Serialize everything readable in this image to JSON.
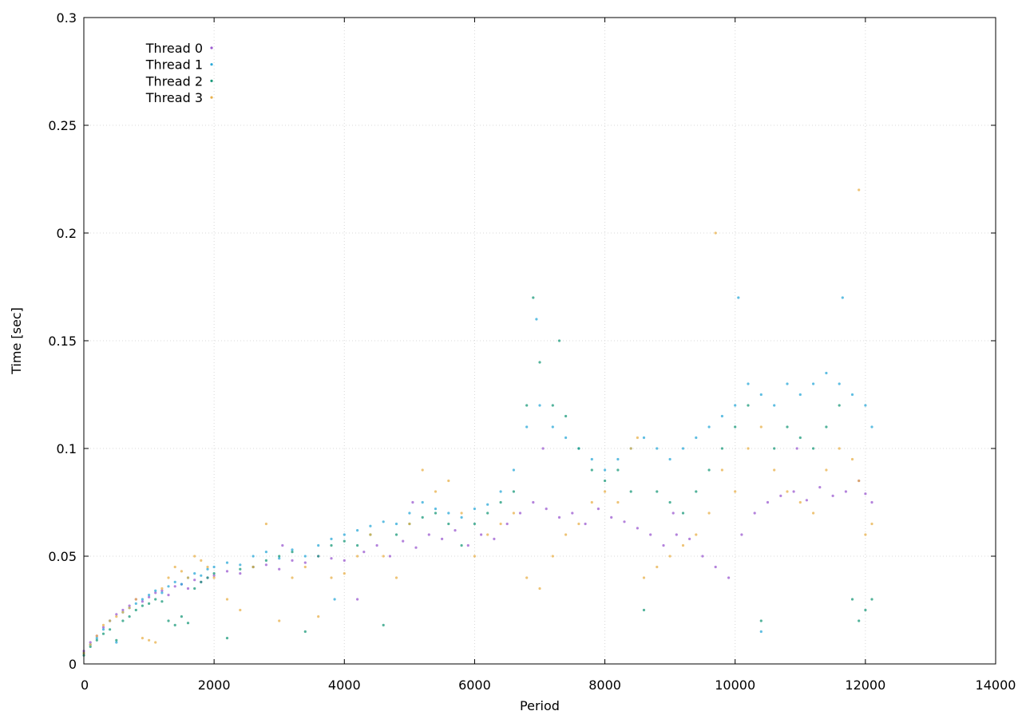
{
  "chart_data": {
    "type": "scatter",
    "title": "",
    "xlabel": "Period",
    "ylabel": "Time [sec]",
    "xlim": [
      0,
      14000
    ],
    "ylim": [
      0,
      0.3
    ],
    "x_ticks": [
      "0",
      "2000",
      "4000",
      "6000",
      "8000",
      "10000",
      "12000",
      "14000"
    ],
    "y_ticks": [
      "0",
      "0.05",
      "0.1",
      "0.15",
      "0.2",
      "0.25",
      "0.3"
    ],
    "grid": true,
    "legend_position": "top-left",
    "series": [
      {
        "name": "Thread 0",
        "color": "#9b59d0",
        "points": [
          [
            0,
            0.006
          ],
          [
            100,
            0.01
          ],
          [
            200,
            0.013
          ],
          [
            300,
            0.017
          ],
          [
            400,
            0.02
          ],
          [
            500,
            0.023
          ],
          [
            600,
            0.025
          ],
          [
            700,
            0.027
          ],
          [
            800,
            0.03
          ],
          [
            900,
            0.029
          ],
          [
            1000,
            0.031
          ],
          [
            1100,
            0.033
          ],
          [
            1200,
            0.034
          ],
          [
            1300,
            0.032
          ],
          [
            1400,
            0.036
          ],
          [
            1500,
            0.037
          ],
          [
            1600,
            0.035
          ],
          [
            1700,
            0.039
          ],
          [
            1800,
            0.038
          ],
          [
            1900,
            0.04
          ],
          [
            2000,
            0.041
          ],
          [
            2200,
            0.043
          ],
          [
            2400,
            0.042
          ],
          [
            2600,
            0.045
          ],
          [
            2800,
            0.046
          ],
          [
            3000,
            0.044
          ],
          [
            3200,
            0.048
          ],
          [
            3400,
            0.047
          ],
          [
            3600,
            0.05
          ],
          [
            3800,
            0.049
          ],
          [
            4000,
            0.048
          ],
          [
            4200,
            0.03
          ],
          [
            4300,
            0.052
          ],
          [
            4500,
            0.055
          ],
          [
            4700,
            0.05
          ],
          [
            4900,
            0.057
          ],
          [
            5100,
            0.054
          ],
          [
            5300,
            0.06
          ],
          [
            5500,
            0.058
          ],
          [
            5700,
            0.062
          ],
          [
            5900,
            0.055
          ],
          [
            6100,
            0.06
          ],
          [
            6300,
            0.058
          ],
          [
            6500,
            0.065
          ],
          [
            6700,
            0.07
          ],
          [
            6900,
            0.075
          ],
          [
            7100,
            0.072
          ],
          [
            7300,
            0.068
          ],
          [
            7500,
            0.07
          ],
          [
            7700,
            0.065
          ],
          [
            7900,
            0.072
          ],
          [
            8100,
            0.068
          ],
          [
            8300,
            0.066
          ],
          [
            8500,
            0.063
          ],
          [
            8700,
            0.06
          ],
          [
            8900,
            0.055
          ],
          [
            9100,
            0.06
          ],
          [
            9300,
            0.058
          ],
          [
            9500,
            0.05
          ],
          [
            9700,
            0.045
          ],
          [
            9900,
            0.04
          ],
          [
            10100,
            0.06
          ],
          [
            10300,
            0.07
          ],
          [
            10500,
            0.075
          ],
          [
            10700,
            0.078
          ],
          [
            10900,
            0.08
          ],
          [
            11100,
            0.076
          ],
          [
            11300,
            0.082
          ],
          [
            11500,
            0.078
          ],
          [
            11700,
            0.08
          ],
          [
            11900,
            0.085
          ],
          [
            12000,
            0.079
          ],
          [
            12100,
            0.075
          ],
          [
            3050,
            0.055
          ],
          [
            5050,
            0.075
          ],
          [
            7050,
            0.1
          ],
          [
            9050,
            0.07
          ],
          [
            10950,
            0.1
          ]
        ]
      },
      {
        "name": "Thread 1",
        "color": "#2aa8d8",
        "points": [
          [
            0,
            0.005
          ],
          [
            100,
            0.009
          ],
          [
            200,
            0.012
          ],
          [
            300,
            0.016
          ],
          [
            400,
            0.02
          ],
          [
            500,
            0.01
          ],
          [
            600,
            0.024
          ],
          [
            700,
            0.026
          ],
          [
            800,
            0.028
          ],
          [
            900,
            0.03
          ],
          [
            1000,
            0.032
          ],
          [
            1100,
            0.034
          ],
          [
            1200,
            0.033
          ],
          [
            1300,
            0.036
          ],
          [
            1400,
            0.038
          ],
          [
            1500,
            0.037
          ],
          [
            1600,
            0.04
          ],
          [
            1700,
            0.042
          ],
          [
            1800,
            0.041
          ],
          [
            1900,
            0.044
          ],
          [
            2000,
            0.045
          ],
          [
            2200,
            0.047
          ],
          [
            2400,
            0.046
          ],
          [
            2600,
            0.05
          ],
          [
            2800,
            0.052
          ],
          [
            3000,
            0.049
          ],
          [
            3200,
            0.053
          ],
          [
            3400,
            0.05
          ],
          [
            3600,
            0.055
          ],
          [
            3800,
            0.058
          ],
          [
            4000,
            0.06
          ],
          [
            4200,
            0.062
          ],
          [
            4400,
            0.064
          ],
          [
            4600,
            0.066
          ],
          [
            4800,
            0.065
          ],
          [
            5000,
            0.07
          ],
          [
            5200,
            0.075
          ],
          [
            5400,
            0.072
          ],
          [
            5600,
            0.07
          ],
          [
            5800,
            0.068
          ],
          [
            6000,
            0.072
          ],
          [
            6200,
            0.074
          ],
          [
            6400,
            0.08
          ],
          [
            6600,
            0.09
          ],
          [
            6800,
            0.11
          ],
          [
            7000,
            0.12
          ],
          [
            7200,
            0.11
          ],
          [
            7400,
            0.105
          ],
          [
            7600,
            0.1
          ],
          [
            7800,
            0.095
          ],
          [
            8000,
            0.09
          ],
          [
            8200,
            0.095
          ],
          [
            8400,
            0.1
          ],
          [
            8600,
            0.105
          ],
          [
            8800,
            0.1
          ],
          [
            9000,
            0.095
          ],
          [
            9200,
            0.1
          ],
          [
            9400,
            0.105
          ],
          [
            9600,
            0.11
          ],
          [
            9800,
            0.115
          ],
          [
            10000,
            0.12
          ],
          [
            10200,
            0.13
          ],
          [
            10400,
            0.125
          ],
          [
            10600,
            0.12
          ],
          [
            10800,
            0.13
          ],
          [
            11000,
            0.125
          ],
          [
            11200,
            0.13
          ],
          [
            11400,
            0.135
          ],
          [
            11600,
            0.13
          ],
          [
            11800,
            0.125
          ],
          [
            12000,
            0.12
          ],
          [
            12100,
            0.11
          ],
          [
            6950,
            0.16
          ],
          [
            10050,
            0.17
          ],
          [
            11650,
            0.17
          ],
          [
            3850,
            0.03
          ],
          [
            10400,
            0.015
          ]
        ]
      },
      {
        "name": "Thread 2",
        "color": "#1a9a7a",
        "points": [
          [
            0,
            0.004
          ],
          [
            100,
            0.008
          ],
          [
            200,
            0.011
          ],
          [
            300,
            0.014
          ],
          [
            400,
            0.016
          ],
          [
            500,
            0.011
          ],
          [
            600,
            0.02
          ],
          [
            700,
            0.022
          ],
          [
            800,
            0.025
          ],
          [
            900,
            0.027
          ],
          [
            1000,
            0.028
          ],
          [
            1100,
            0.03
          ],
          [
            1200,
            0.029
          ],
          [
            1300,
            0.02
          ],
          [
            1400,
            0.018
          ],
          [
            1500,
            0.022
          ],
          [
            1600,
            0.019
          ],
          [
            1700,
            0.035
          ],
          [
            1800,
            0.038
          ],
          [
            1900,
            0.04
          ],
          [
            2000,
            0.042
          ],
          [
            2200,
            0.012
          ],
          [
            2400,
            0.044
          ],
          [
            2600,
            0.045
          ],
          [
            2800,
            0.048
          ],
          [
            3000,
            0.05
          ],
          [
            3200,
            0.052
          ],
          [
            3400,
            0.015
          ],
          [
            3600,
            0.05
          ],
          [
            3800,
            0.055
          ],
          [
            4000,
            0.057
          ],
          [
            4200,
            0.055
          ],
          [
            4400,
            0.06
          ],
          [
            4600,
            0.018
          ],
          [
            4800,
            0.06
          ],
          [
            5000,
            0.065
          ],
          [
            5200,
            0.068
          ],
          [
            5400,
            0.07
          ],
          [
            5600,
            0.065
          ],
          [
            5800,
            0.055
          ],
          [
            6000,
            0.065
          ],
          [
            6200,
            0.07
          ],
          [
            6400,
            0.075
          ],
          [
            6600,
            0.08
          ],
          [
            6800,
            0.12
          ],
          [
            7000,
            0.14
          ],
          [
            7200,
            0.12
          ],
          [
            7400,
            0.115
          ],
          [
            7600,
            0.1
          ],
          [
            7800,
            0.09
          ],
          [
            8000,
            0.085
          ],
          [
            8200,
            0.09
          ],
          [
            8400,
            0.08
          ],
          [
            8600,
            0.025
          ],
          [
            8800,
            0.08
          ],
          [
            9000,
            0.075
          ],
          [
            9200,
            0.07
          ],
          [
            9400,
            0.08
          ],
          [
            9600,
            0.09
          ],
          [
            9800,
            0.1
          ],
          [
            10000,
            0.11
          ],
          [
            10200,
            0.12
          ],
          [
            10400,
            0.02
          ],
          [
            10600,
            0.1
          ],
          [
            10800,
            0.11
          ],
          [
            11000,
            0.105
          ],
          [
            11200,
            0.1
          ],
          [
            11400,
            0.11
          ],
          [
            11600,
            0.12
          ],
          [
            11800,
            0.03
          ],
          [
            11900,
            0.02
          ],
          [
            12000,
            0.025
          ],
          [
            12100,
            0.03
          ],
          [
            6900,
            0.17
          ],
          [
            7300,
            0.15
          ]
        ]
      },
      {
        "name": "Thread 3",
        "color": "#e8b04a",
        "points": [
          [
            0,
            0.005
          ],
          [
            100,
            0.009
          ],
          [
            200,
            0.013
          ],
          [
            300,
            0.018
          ],
          [
            400,
            0.02
          ],
          [
            500,
            0.022
          ],
          [
            600,
            0.024
          ],
          [
            700,
            0.026
          ],
          [
            800,
            0.03
          ],
          [
            900,
            0.012
          ],
          [
            1000,
            0.011
          ],
          [
            1100,
            0.01
          ],
          [
            1200,
            0.035
          ],
          [
            1300,
            0.04
          ],
          [
            1400,
            0.045
          ],
          [
            1500,
            0.043
          ],
          [
            1600,
            0.04
          ],
          [
            1700,
            0.05
          ],
          [
            1800,
            0.048
          ],
          [
            1900,
            0.045
          ],
          [
            2000,
            0.04
          ],
          [
            2200,
            0.03
          ],
          [
            2400,
            0.025
          ],
          [
            2600,
            0.045
          ],
          [
            2800,
            0.065
          ],
          [
            3000,
            0.02
          ],
          [
            3200,
            0.04
          ],
          [
            3400,
            0.045
          ],
          [
            3600,
            0.022
          ],
          [
            3800,
            0.04
          ],
          [
            4000,
            0.042
          ],
          [
            4200,
            0.05
          ],
          [
            4400,
            0.06
          ],
          [
            4600,
            0.05
          ],
          [
            4800,
            0.04
          ],
          [
            5000,
            0.065
          ],
          [
            5200,
            0.09
          ],
          [
            5400,
            0.08
          ],
          [
            5600,
            0.085
          ],
          [
            5800,
            0.07
          ],
          [
            6000,
            0.05
          ],
          [
            6200,
            0.06
          ],
          [
            6400,
            0.065
          ],
          [
            6600,
            0.07
          ],
          [
            6800,
            0.04
          ],
          [
            7000,
            0.035
          ],
          [
            7200,
            0.05
          ],
          [
            7400,
            0.06
          ],
          [
            7600,
            0.065
          ],
          [
            7800,
            0.075
          ],
          [
            8000,
            0.08
          ],
          [
            8200,
            0.075
          ],
          [
            8400,
            0.1
          ],
          [
            8600,
            0.04
          ],
          [
            8800,
            0.045
          ],
          [
            9000,
            0.05
          ],
          [
            9200,
            0.055
          ],
          [
            9400,
            0.06
          ],
          [
            9600,
            0.07
          ],
          [
            9800,
            0.09
          ],
          [
            10000,
            0.08
          ],
          [
            10200,
            0.1
          ],
          [
            10400,
            0.11
          ],
          [
            10600,
            0.09
          ],
          [
            10800,
            0.08
          ],
          [
            11000,
            0.075
          ],
          [
            11200,
            0.07
          ],
          [
            11400,
            0.09
          ],
          [
            11600,
            0.1
          ],
          [
            11800,
            0.095
          ],
          [
            11900,
            0.085
          ],
          [
            12000,
            0.06
          ],
          [
            12100,
            0.065
          ],
          [
            8500,
            0.105
          ],
          [
            9700,
            0.2
          ],
          [
            11900,
            0.22
          ]
        ]
      }
    ]
  }
}
